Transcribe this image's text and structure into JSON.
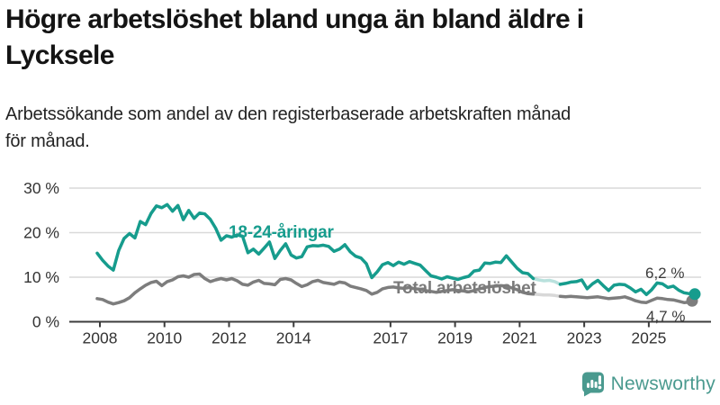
{
  "title": "Högre arbetslöshet bland unga än bland äldre i\nLycksele",
  "subtitle": "Arbetssökande som andel av den registerbaserade arbetskraften månad\nför månad.",
  "branding": {
    "name": "Newsworthy",
    "color": "#4a9a8f",
    "icon": "bar-chart-speech-bubble-icon"
  },
  "colors": {
    "grid": "#d9d9d9",
    "axis": "#3c3c3c",
    "tick_text": "#333333",
    "youth": "#169c8d",
    "total": "#7d7d7d"
  },
  "chart_data": {
    "type": "line",
    "unit": "%",
    "x_axis": {
      "tick_years": [
        2008,
        2010,
        2012,
        2014,
        2017,
        2019,
        2021,
        2023,
        2025
      ],
      "tick_labels": [
        "2008",
        "2010",
        "2012",
        "2014",
        "2017",
        "2019",
        "2021",
        "2023",
        "2025"
      ]
    },
    "y_axis": {
      "tick_values": [
        30,
        20,
        10,
        0
      ],
      "tick_labels": [
        "30 %",
        "20 %",
        "10 %",
        "0 %"
      ],
      "ylim": [
        0,
        32
      ],
      "grid": true
    },
    "series": [
      {
        "name": "18-24-åringar",
        "color": "#169c8d",
        "end_label": "6,2 %",
        "end_value": 6.2,
        "values": [
          15.4,
          13.8,
          12.5,
          11.6,
          16.0,
          18.7,
          19.8,
          18.8,
          22.5,
          21.8,
          24.3,
          26.0,
          25.6,
          26.3,
          24.8,
          26.1,
          22.9,
          25.0,
          23.2,
          24.4,
          24.2,
          23.0,
          21.0,
          18.3,
          19.3,
          19.0,
          19.5,
          19.2,
          15.5,
          16.3,
          15.2,
          16.5,
          17.9,
          14.2,
          16.0,
          17.5,
          15.0,
          14.3,
          14.6,
          16.8,
          17.1,
          17.0,
          17.2,
          16.9,
          15.8,
          16.3,
          17.3,
          15.7,
          14.7,
          14.3,
          13.0,
          9.9,
          11.2,
          12.8,
          13.3,
          12.6,
          13.4,
          12.9,
          13.5,
          13.1,
          12.7,
          11.5,
          10.3,
          10.0,
          9.6,
          10.1,
          9.8,
          9.5,
          9.9,
          10.2,
          11.4,
          11.6,
          13.2,
          13.1,
          13.4,
          13.3,
          14.8,
          13.4,
          12.0,
          11.0,
          10.8,
          9.7,
          9.4,
          9.2,
          9.3,
          9.0,
          8.4,
          8.6,
          8.9,
          9.0,
          9.4,
          7.4,
          8.5,
          9.3,
          8.1,
          7.0,
          8.2,
          8.4,
          8.3,
          7.6,
          6.7,
          7.3,
          6.1,
          7.2,
          8.7,
          8.5,
          7.7,
          8.0,
          7.1,
          6.5,
          6.3,
          6.2
        ]
      },
      {
        "name": "Total arbetslöshet",
        "color": "#7d7d7d",
        "end_label": "4,7 %",
        "end_value": 4.7,
        "values": [
          5.2,
          5.0,
          4.4,
          4.0,
          4.3,
          4.7,
          5.4,
          6.5,
          7.4,
          8.2,
          8.8,
          9.1,
          8.1,
          9.0,
          9.4,
          10.1,
          10.3,
          10.0,
          10.6,
          10.7,
          9.7,
          9.0,
          9.4,
          9.7,
          9.4,
          9.7,
          9.2,
          8.4,
          8.2,
          8.9,
          9.3,
          8.6,
          8.5,
          8.3,
          9.5,
          9.7,
          9.4,
          8.6,
          7.9,
          8.3,
          9.0,
          9.3,
          8.8,
          8.6,
          8.4,
          8.9,
          8.7,
          8.0,
          7.7,
          7.4,
          7.0,
          6.2,
          6.6,
          7.4,
          7.7,
          7.8,
          7.6,
          7.5,
          7.7,
          7.4,
          7.3,
          7.0,
          6.8,
          6.6,
          6.8,
          7.0,
          7.2,
          7.0,
          6.9,
          6.7,
          7.0,
          7.4,
          7.7,
          7.9,
          8.0,
          8.1,
          8.0,
          7.6,
          7.2,
          6.6,
          6.3,
          6.2,
          6.1,
          6.0,
          6.0,
          5.9,
          5.7,
          5.6,
          5.7,
          5.6,
          5.5,
          5.4,
          5.5,
          5.6,
          5.4,
          5.2,
          5.3,
          5.4,
          5.6,
          5.2,
          4.7,
          4.4,
          4.3,
          4.8,
          5.3,
          5.2,
          5.0,
          4.9,
          4.6,
          4.3,
          4.4,
          4.7
        ]
      }
    ],
    "faded_index_range": [
      81,
      86
    ],
    "legend_position": "inline-labels"
  }
}
